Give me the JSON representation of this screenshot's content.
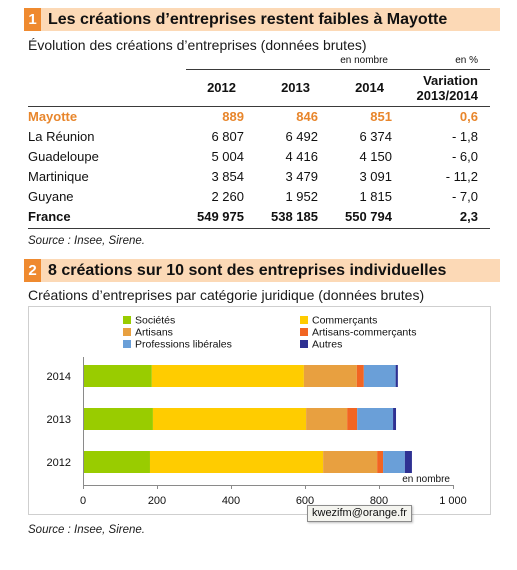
{
  "theme": {
    "accent": "#ef8a2f",
    "band": "#fcd9b6",
    "highlight_text": "#e8862c"
  },
  "section1": {
    "number": "1",
    "title": "Les créations d’entreprises restent faibles à Mayotte",
    "subtitle": "Évolution des créations d’entreprises (données brutes)",
    "table": {
      "unit_count": "en nombre",
      "unit_pct": "en %",
      "columns": [
        "2012",
        "2013",
        "2014"
      ],
      "variation_header": [
        "Variation",
        "2013/2014"
      ],
      "rows": [
        {
          "label": "Mayotte",
          "values": [
            "889",
            "846",
            "851",
            "0,6"
          ]
        },
        {
          "label": "La Réunion",
          "values": [
            "6 807",
            "6 492",
            "6 374",
            "- 1,8"
          ]
        },
        {
          "label": "Guadeloupe",
          "values": [
            "5 004",
            "4 416",
            "4 150",
            "- 6,0"
          ]
        },
        {
          "label": "Martinique",
          "values": [
            "3 854",
            "3 479",
            "3 091",
            "- 11,2"
          ]
        },
        {
          "label": "Guyane",
          "values": [
            "2 260",
            "1 952",
            "1 815",
            "- 7,0"
          ]
        },
        {
          "label": "France",
          "values": [
            "549 975",
            "538 185",
            "550 794",
            "2,3"
          ]
        }
      ]
    },
    "source": "Source : Insee, Sirene."
  },
  "section2": {
    "number": "2",
    "title": "8 créations sur 10 sont des entreprises individuelles",
    "source": "Source : Insee, Sirene."
  },
  "overlay": {
    "email": "kwezifm@orange.fr"
  },
  "chart_data": {
    "type": "bar",
    "orientation": "horizontal",
    "stacked": true,
    "title": "Créations d’entreprises par catégorie juridique (données brutes)",
    "categories": [
      "2014",
      "2013",
      "2012"
    ],
    "series": [
      {
        "name": "Sociétés",
        "color": "#99cc00",
        "values": [
          186,
          189,
          181
        ]
      },
      {
        "name": "Commerçants",
        "color": "#ffcc00",
        "values": [
          411,
          414,
          468
        ]
      },
      {
        "name": "Artisans",
        "color": "#e8a040",
        "values": [
          143,
          111,
          146
        ]
      },
      {
        "name": "Artisans-commerçants",
        "color": "#f26522",
        "values": [
          19,
          27,
          16
        ]
      },
      {
        "name": "Professions libérales",
        "color": "#6a9fd8",
        "values": [
          86,
          97,
          59
        ]
      },
      {
        "name": "Autres",
        "color": "#2e3192",
        "values": [
          6,
          8,
          19
        ]
      }
    ],
    "xlim": [
      0,
      1000
    ],
    "xticks": [
      0,
      200,
      400,
      600,
      800,
      1000
    ],
    "xtick_labels": [
      "0",
      "200",
      "400",
      "600",
      "800",
      "1 000"
    ],
    "xlabel": "en nombre",
    "legend": "top",
    "grid": false
  }
}
